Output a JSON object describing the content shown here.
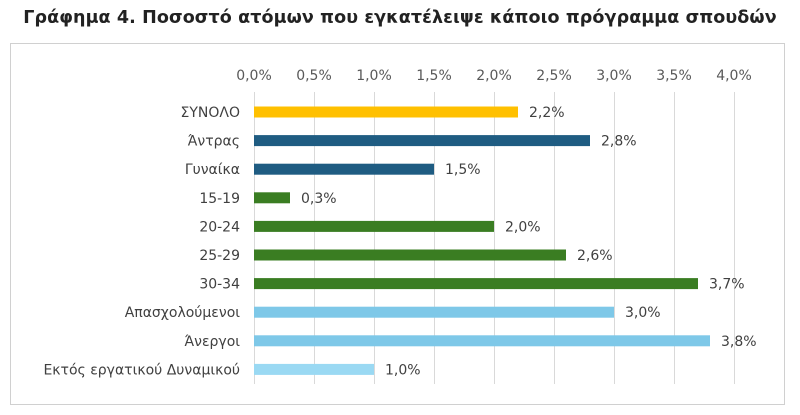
{
  "chart_data": {
    "type": "bar",
    "orientation": "horizontal",
    "title": "Γράφημα 4. Ποσοστό ατόμων που εγκατέλειψε κάποιο πρόγραμμα σπουδών",
    "categories": [
      "ΣΥΝΟΛΟ",
      "Άντρας",
      "Γυναίκα",
      "15-19",
      "20-24",
      "25-29",
      "30-34",
      "Απασχολούμενοι",
      "Άνεργοι",
      "Εκτός εργατικού Δυναμικού"
    ],
    "values": [
      2.2,
      2.8,
      1.5,
      0.3,
      2.0,
      2.6,
      3.7,
      3.0,
      3.8,
      1.0
    ],
    "value_labels": [
      "2,2%",
      "2,8%",
      "1,5%",
      "0,3%",
      "2,0%",
      "2,6%",
      "3,7%",
      "3,0%",
      "3,8%",
      "1,0%"
    ],
    "colors": [
      "#ffc000",
      "#1f5c82",
      "#1f5c82",
      "#3a7d22",
      "#3a7d22",
      "#3a7d22",
      "#3a7d22",
      "#7ec8e8",
      "#7ec8e8",
      "#9ad9f3"
    ],
    "xlim": [
      0,
      4.0
    ],
    "xticks": [
      0,
      0.5,
      1.0,
      1.5,
      2.0,
      2.5,
      3.0,
      3.5,
      4.0
    ],
    "xtick_labels": [
      "0,0%",
      "0,5%",
      "1,0%",
      "1,5%",
      "2,0%",
      "2,5%",
      "3,0%",
      "3,5%",
      "4,0%"
    ],
    "xaxis_position": "top",
    "grid": true,
    "xlabel": "",
    "ylabel": ""
  }
}
